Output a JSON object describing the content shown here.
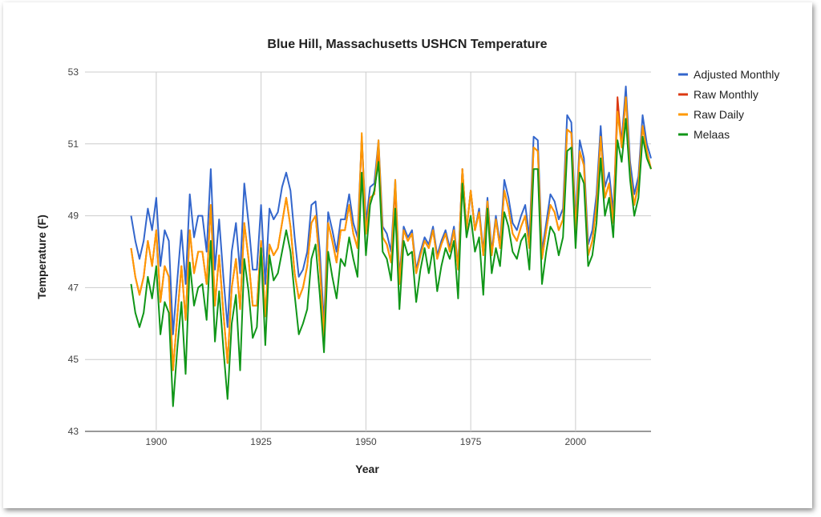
{
  "chart_data": {
    "type": "line",
    "title": "Blue Hill, Massachusetts USHCN Temperature",
    "xlabel": "Year",
    "ylabel": "Temperature (F)",
    "xlim": [
      1883,
      2018
    ],
    "ylim": [
      43,
      53
    ],
    "x_ticks": [
      1900,
      1925,
      1950,
      1975,
      2000
    ],
    "y_ticks": [
      43,
      45,
      47,
      49,
      51,
      53
    ],
    "grid": true,
    "legend_position": "right",
    "x": [
      1894,
      1895,
      1896,
      1897,
      1898,
      1899,
      1900,
      1901,
      1902,
      1903,
      1904,
      1905,
      1906,
      1907,
      1908,
      1909,
      1910,
      1911,
      1912,
      1913,
      1914,
      1915,
      1916,
      1917,
      1918,
      1919,
      1920,
      1921,
      1922,
      1923,
      1924,
      1925,
      1926,
      1927,
      1928,
      1929,
      1930,
      1931,
      1932,
      1933,
      1934,
      1935,
      1936,
      1937,
      1938,
      1939,
      1940,
      1941,
      1942,
      1943,
      1944,
      1945,
      1946,
      1947,
      1948,
      1949,
      1950,
      1951,
      1952,
      1953,
      1954,
      1955,
      1956,
      1957,
      1958,
      1959,
      1960,
      1961,
      1962,
      1963,
      1964,
      1965,
      1966,
      1967,
      1968,
      1969,
      1970,
      1971,
      1972,
      1973,
      1974,
      1975,
      1976,
      1977,
      1978,
      1979,
      1980,
      1981,
      1982,
      1983,
      1984,
      1985,
      1986,
      1987,
      1988,
      1989,
      1990,
      1991,
      1992,
      1993,
      1994,
      1995,
      1996,
      1997,
      1998,
      1999,
      2000,
      2001,
      2002,
      2003,
      2004,
      2005,
      2006,
      2007,
      2008,
      2009,
      2010,
      2011,
      2012,
      2013,
      2014,
      2015,
      2016,
      2017,
      2018
    ],
    "series": [
      {
        "name": "Adjusted Monthly",
        "color": "#3366cc",
        "values": [
          49.0,
          48.3,
          47.8,
          48.3,
          49.2,
          48.6,
          49.5,
          47.6,
          48.6,
          48.3,
          45.7,
          47.2,
          48.6,
          47.1,
          49.6,
          48.4,
          49.0,
          49.0,
          48.0,
          50.3,
          47.5,
          48.9,
          47.3,
          45.9,
          48.0,
          48.8,
          47.4,
          49.9,
          48.8,
          47.5,
          47.5,
          49.3,
          47.1,
          49.2,
          48.9,
          49.1,
          49.8,
          50.2,
          49.7,
          48.4,
          47.3,
          47.5,
          48.0,
          49.3,
          49.4,
          48.0,
          46.0,
          49.1,
          48.6,
          48.0,
          48.9,
          48.9,
          49.6,
          48.8,
          48.4,
          51.2,
          48.8,
          49.8,
          49.9,
          51.1,
          48.7,
          48.5,
          48.0,
          50.0,
          47.3,
          48.7,
          48.4,
          48.6,
          47.5,
          48.0,
          48.4,
          48.2,
          48.7,
          47.9,
          48.3,
          48.6,
          48.1,
          48.7,
          47.6,
          50.3,
          48.6,
          49.7,
          48.6,
          49.2,
          48.0,
          49.5,
          48.0,
          49.0,
          48.2,
          50.0,
          49.5,
          48.8,
          48.6,
          49.0,
          49.3,
          48.4,
          51.2,
          51.1,
          48.0,
          48.8,
          49.6,
          49.4,
          48.9,
          49.2,
          51.8,
          51.6,
          48.8,
          51.1,
          50.6,
          48.2,
          48.6,
          49.6,
          51.5,
          49.8,
          50.2,
          49.1,
          51.8,
          51.1,
          52.6,
          50.5,
          49.6,
          50.1,
          51.8,
          51.0,
          50.6
        ]
      },
      {
        "name": "Raw Monthly",
        "color": "#dc3912",
        "values": [
          48.1,
          47.3,
          46.8,
          47.3,
          48.3,
          47.6,
          48.6,
          46.6,
          47.6,
          47.3,
          44.7,
          46.2,
          47.6,
          46.1,
          48.6,
          47.4,
          48.0,
          48.0,
          47.1,
          49.3,
          46.5,
          47.9,
          46.3,
          44.9,
          47.0,
          47.8,
          46.4,
          48.8,
          47.8,
          46.5,
          46.5,
          48.3,
          46.2,
          48.2,
          47.9,
          48.1,
          48.8,
          49.5,
          48.7,
          47.4,
          46.7,
          47.0,
          47.6,
          48.8,
          49.0,
          47.6,
          45.6,
          48.8,
          48.3,
          47.7,
          48.6,
          48.6,
          49.3,
          48.5,
          48.1,
          51.2,
          48.5,
          49.5,
          49.6,
          50.8,
          48.4,
          48.2,
          47.7,
          49.8,
          47.1,
          48.6,
          48.3,
          48.5,
          47.4,
          47.9,
          48.3,
          48.1,
          48.6,
          47.8,
          48.2,
          48.5,
          48.0,
          48.6,
          47.5,
          50.3,
          48.6,
          49.7,
          48.6,
          49.1,
          47.9,
          49.4,
          47.9,
          48.9,
          48.1,
          49.7,
          49.2,
          48.5,
          48.3,
          48.7,
          49.0,
          48.1,
          50.9,
          50.8,
          47.8,
          48.6,
          49.3,
          49.1,
          48.6,
          48.9,
          51.4,
          51.3,
          48.6,
          50.8,
          50.4,
          47.9,
          48.3,
          49.3,
          51.2,
          49.5,
          49.9,
          48.8,
          52.3,
          50.9,
          52.3,
          50.2,
          49.3,
          49.9,
          51.5,
          50.8,
          50.3
        ]
      },
      {
        "name": "Raw Daily",
        "color": "#ff9900",
        "values": [
          48.1,
          47.3,
          46.8,
          47.3,
          48.3,
          47.6,
          48.6,
          46.6,
          47.6,
          47.3,
          44.7,
          46.2,
          47.6,
          46.1,
          48.6,
          47.4,
          48.0,
          48.0,
          47.1,
          49.3,
          46.5,
          47.9,
          46.3,
          44.9,
          47.0,
          47.8,
          46.4,
          48.8,
          47.8,
          46.5,
          46.5,
          48.3,
          46.2,
          48.2,
          47.9,
          48.1,
          48.8,
          49.5,
          48.7,
          47.4,
          46.7,
          47.0,
          47.6,
          48.8,
          49.0,
          47.6,
          45.6,
          48.8,
          48.3,
          47.7,
          48.6,
          48.6,
          49.3,
          48.5,
          48.1,
          51.3,
          48.5,
          49.5,
          49.6,
          51.1,
          48.4,
          48.2,
          47.7,
          50.0,
          47.1,
          48.6,
          48.3,
          48.5,
          47.4,
          47.9,
          48.3,
          48.1,
          48.6,
          47.8,
          48.2,
          48.5,
          48.0,
          48.6,
          47.5,
          50.3,
          48.6,
          49.7,
          48.6,
          49.1,
          47.9,
          49.4,
          47.9,
          48.9,
          48.1,
          49.7,
          49.2,
          48.5,
          48.3,
          48.7,
          49.0,
          48.1,
          50.9,
          50.8,
          47.8,
          48.6,
          49.3,
          49.1,
          48.6,
          48.9,
          51.4,
          51.3,
          48.6,
          50.8,
          50.4,
          47.9,
          48.3,
          49.3,
          51.2,
          49.5,
          49.9,
          48.8,
          51.9,
          50.9,
          52.3,
          50.2,
          49.3,
          49.9,
          51.5,
          50.8,
          50.3
        ]
      },
      {
        "name": "Melaas",
        "color": "#109618",
        "values": [
          47.1,
          46.3,
          45.9,
          46.3,
          47.3,
          46.7,
          47.6,
          45.7,
          46.6,
          46.3,
          43.7,
          45.3,
          46.6,
          44.6,
          47.7,
          46.5,
          47.0,
          47.1,
          46.1,
          48.3,
          45.5,
          46.9,
          45.3,
          43.9,
          46.0,
          46.8,
          44.7,
          47.8,
          46.9,
          45.6,
          45.9,
          48.1,
          45.4,
          47.9,
          47.2,
          47.4,
          48.0,
          48.6,
          48.0,
          46.8,
          45.7,
          46.0,
          46.4,
          47.8,
          48.2,
          46.8,
          45.2,
          48.0,
          47.3,
          46.7,
          47.8,
          47.6,
          48.4,
          47.8,
          47.3,
          50.2,
          47.9,
          49.3,
          49.7,
          50.5,
          48.0,
          47.8,
          47.2,
          49.2,
          46.4,
          48.3,
          47.9,
          48.0,
          46.6,
          47.5,
          48.1,
          47.4,
          48.1,
          46.9,
          47.6,
          48.1,
          47.8,
          48.3,
          46.7,
          49.9,
          48.4,
          49.0,
          48.0,
          48.4,
          46.8,
          49.2,
          47.4,
          48.1,
          47.6,
          49.1,
          48.7,
          48.0,
          47.8,
          48.3,
          48.5,
          47.5,
          50.3,
          50.3,
          47.1,
          48.0,
          48.7,
          48.5,
          47.9,
          48.4,
          50.8,
          50.9,
          48.1,
          50.2,
          49.9,
          47.6,
          47.9,
          48.8,
          50.6,
          49.0,
          49.5,
          48.4,
          51.1,
          50.5,
          51.7,
          50.0,
          49.0,
          49.5,
          51.2,
          50.6,
          50.3
        ]
      }
    ]
  }
}
